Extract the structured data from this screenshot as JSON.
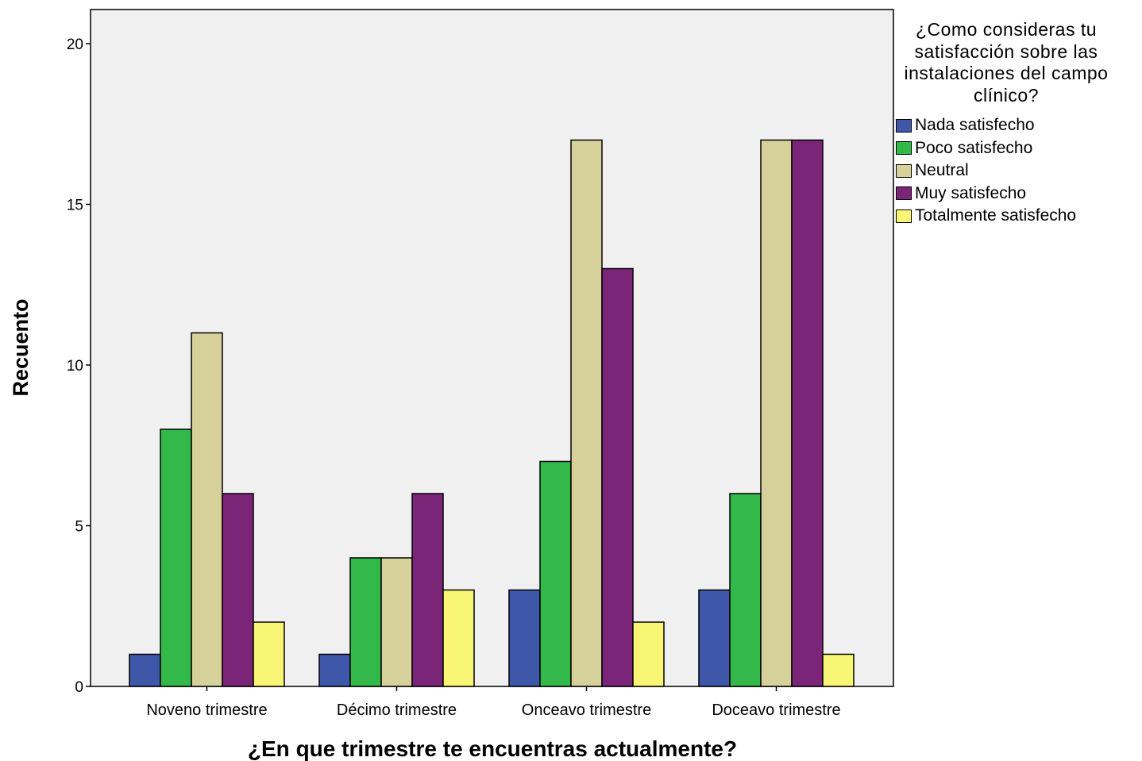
{
  "chart_data": {
    "type": "bar",
    "title": "",
    "xlabel": "¿En que trimestre te encuentras actualmente?",
    "ylabel": "Recuento",
    "ylim": [
      0,
      21
    ],
    "yticks": [
      0,
      5,
      10,
      15,
      20
    ],
    "grid": false,
    "legend_title": "¿Como consideras tu satisfacción sobre las instalaciones del campo clínico?",
    "legend_position": "right",
    "categories": [
      "Noveno trimestre",
      "Décimo trimestre",
      "Onceavo trimestre",
      "Doceavo trimestre"
    ],
    "series": [
      {
        "name": "Nada satisfecho",
        "color": "#3f57a8",
        "values": [
          1,
          1,
          3,
          3
        ]
      },
      {
        "name": "Poco satisfecho",
        "color": "#33b84a",
        "values": [
          8,
          4,
          7,
          6
        ]
      },
      {
        "name": "Neutral",
        "color": "#d6d19a",
        "values": [
          11,
          4,
          17,
          17
        ]
      },
      {
        "name": "Muy satisfecho",
        "color": "#7a2578",
        "values": [
          6,
          6,
          13,
          17
        ]
      },
      {
        "name": "Totalmente satisfecho",
        "color": "#f9f575",
        "values": [
          2,
          3,
          2,
          1
        ]
      }
    ],
    "plot_background": "#f0f0f0"
  }
}
